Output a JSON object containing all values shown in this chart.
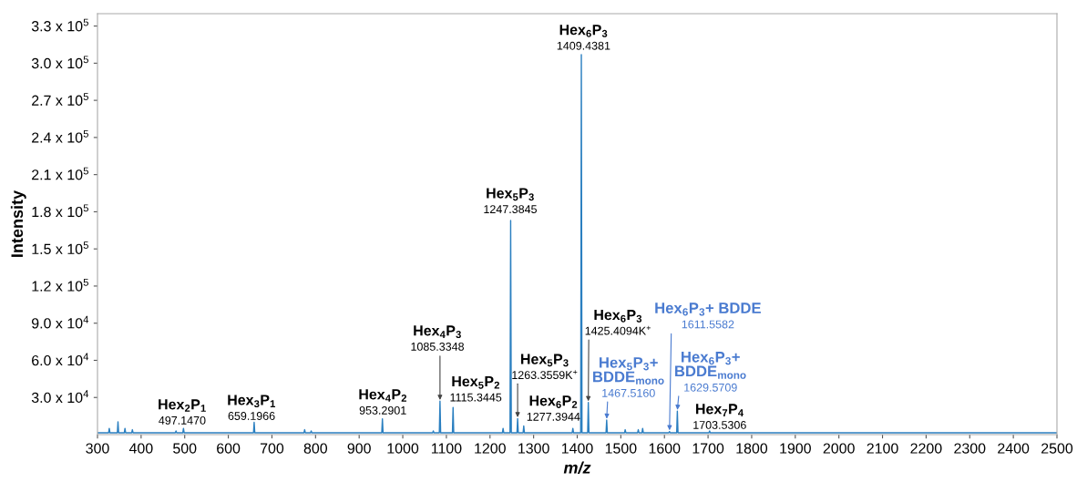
{
  "chart_data": {
    "type": "line",
    "xlabel": "m/z",
    "ylabel": "Intensity",
    "series": [
      {
        "color": "#2a7fc0",
        "x": [
          300,
          325.5,
          327,
          328.5,
          345.5,
          347,
          348.5,
          361.5,
          363,
          364.5,
          378.5,
          380,
          381.5,
          478.5,
          480,
          481.5,
          495.65,
          497.15,
          498.65,
          657.7,
          659.2,
          660.7,
          773.5,
          775,
          776.5,
          788.5,
          790,
          791.5,
          951.79,
          953.29,
          954.79,
          1068.5,
          1070,
          1071.5,
          1083.83,
          1085.33,
          1086.83,
          1113.84,
          1115.34,
          1116.84,
          1228.5,
          1230,
          1231.5,
          1245.88,
          1247.38,
          1248.88,
          1261.86,
          1263.36,
          1264.86,
          1275.89,
          1277.39,
          1278.89,
          1388.5,
          1390,
          1391.5,
          1407.94,
          1409.44,
          1410.94,
          1423.91,
          1425.41,
          1426.91,
          1466.02,
          1467.52,
          1469.02,
          1508.5,
          1510,
          1511.5,
          1538.5,
          1540,
          1541.5,
          1548.5,
          1550,
          1551.5,
          1610.06,
          1611.56,
          1613.06,
          1628.07,
          1629.57,
          1631.07,
          1702.03,
          1703.53,
          1705.03,
          2500
        ],
        "values": [
          1500,
          1500,
          5000,
          1500,
          1500,
          10300,
          1500,
          1500,
          5000,
          1500,
          1500,
          4000,
          1500,
          1500,
          3000,
          1500,
          1500,
          5000,
          1500,
          1500,
          9900,
          1500,
          1500,
          4000,
          1500,
          1500,
          3000,
          1500,
          1500,
          12800,
          1500,
          1500,
          3000,
          1500,
          1500,
          27000,
          1500,
          1500,
          22000,
          1500,
          1500,
          5000,
          1500,
          1500,
          173000,
          1500,
          1500,
          13000,
          1500,
          1500,
          7000,
          1500,
          1500,
          5000,
          1500,
          1500,
          307000,
          1500,
          1500,
          26000,
          1500,
          1500,
          11800,
          1500,
          1500,
          4000,
          1500,
          1500,
          4000,
          1500,
          1500,
          5000,
          1500,
          1500,
          2500,
          1500,
          1500,
          19000,
          1500,
          1500,
          3000,
          1500,
          1500
        ]
      }
    ],
    "xlim": [
      300,
      2500
    ],
    "xticks": [
      300,
      400,
      500,
      600,
      700,
      800,
      900,
      1000,
      1100,
      1200,
      1300,
      1400,
      1500,
      1600,
      1700,
      1800,
      1900,
      2000,
      2100,
      2200,
      2300,
      2400,
      2500
    ],
    "ylim": [
      0,
      340000
    ],
    "yticks": [
      {
        "value": 30000,
        "label": "3.0 x 10$^{4}$"
      },
      {
        "value": 60000,
        "label": "6.0 x 10$^{4}$"
      },
      {
        "value": 90000,
        "label": "9.0 x 10$^{4}$"
      },
      {
        "value": 120000,
        "label": "1.2 x 10$^{5}$"
      },
      {
        "value": 150000,
        "label": "1.5 x 10$^{5}$"
      },
      {
        "value": 180000,
        "label": "1.8 x 10$^{5}$"
      },
      {
        "value": 210000,
        "label": "2.1 x 10$^{5}$"
      },
      {
        "value": 240000,
        "label": "2.4 x 10$^{5}$"
      },
      {
        "value": 270000,
        "label": "2.7 x 10$^{5}$"
      },
      {
        "value": 300000,
        "label": "3.0 x 10$^{5}$"
      },
      {
        "value": 330000,
        "label": "3.3 x 10$^{5}$"
      }
    ],
    "grid": false,
    "legend": false,
    "marker": "none",
    "line_style": "solid",
    "annotations": [
      {
        "text": "Hex$_{2}$P$_{1}$",
        "x": 497.15,
        "y": 5000
      },
      {
        "text": "497.1470",
        "x": 497.15,
        "y": 5000
      },
      {
        "text": "Hex$_{3}$P$_{1}$",
        "x": 659.2,
        "y": 9900
      },
      {
        "text": "659.1966",
        "x": 659.2,
        "y": 9900
      },
      {
        "text": "Hex$_{4}$P$_{2}$",
        "x": 953.29,
        "y": 12800
      },
      {
        "text": "953.2901",
        "x": 953.29,
        "y": 12800
      },
      {
        "text": "Hex$_{4}$P$_{3}$",
        "x": 1085.33,
        "y": 27000
      },
      {
        "text": "1085.3348",
        "x": 1085.33,
        "y": 27000
      },
      {
        "text": "Hex$_{5}$P$_{2}$",
        "x": 1115.34,
        "y": 22000
      },
      {
        "text": "1115.3445",
        "x": 1115.34,
        "y": 22000
      },
      {
        "text": "Hex$_{5}$P$_{3}$",
        "x": 1247.38,
        "y": 173000
      },
      {
        "text": "1247.3845",
        "x": 1247.38,
        "y": 173000
      },
      {
        "text": "Hex$_{5}$P$_{3}$",
        "x": 1263.36,
        "y": 13000
      },
      {
        "text": "1263.3559K$^{+}$",
        "x": 1263.36,
        "y": 13000
      },
      {
        "text": "Hex$_{6}$P$_{2}$",
        "x": 1277.39,
        "y": 7000
      },
      {
        "text": "1277.3944",
        "x": 1277.39,
        "y": 7000
      },
      {
        "text": "Hex$_{6}$P$_{3}$",
        "x": 1409.44,
        "y": 307000
      },
      {
        "text": "1409.4381",
        "x": 1409.44,
        "y": 307000
      },
      {
        "text": "Hex$_{6}$P$_{3}$",
        "x": 1425.41,
        "y": 26000
      },
      {
        "text": "1425.4094K$^{+}$",
        "x": 1425.41,
        "y": 26000
      },
      {
        "text": "Hex$_{5}$P$_{3}$+\nBDDE$_{mono}$",
        "x": 1467.52,
        "y": 11800
      },
      {
        "text": "1467.5160",
        "x": 1467.52,
        "y": 11800
      },
      {
        "text": "Hex$_{6}$P$_{3}$+ BDDE",
        "x": 1611.56,
        "y": 2500
      },
      {
        "text": "1611.5582",
        "x": 1611.56,
        "y": 2500
      },
      {
        "text": "Hex$_{6}$P$_{3}$+\nBDDE$_{mono}$",
        "x": 1629.57,
        "y": 19000
      },
      {
        "text": "1629.5709",
        "x": 1629.57,
        "y": 19000
      },
      {
        "text": "Hex$_{7}$P$_{4}$",
        "x": 1703.53,
        "y": 3000
      },
      {
        "text": "1703.5306",
        "x": 1703.53,
        "y": 3000
      }
    ]
  }
}
